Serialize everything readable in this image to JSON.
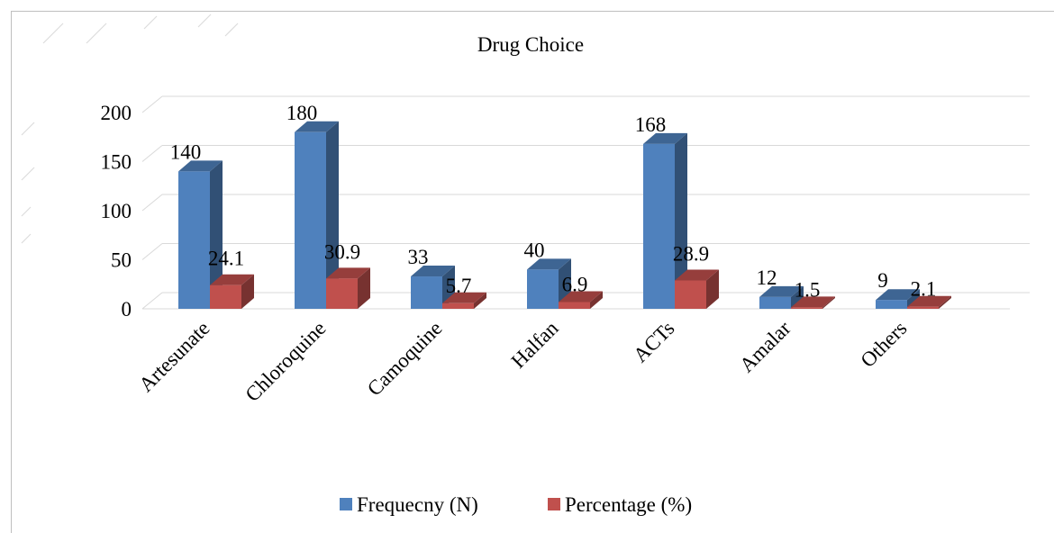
{
  "chart_data": {
    "type": "bar",
    "title": "Drug Choice",
    "categories": [
      "Artesunate",
      "Chloroquine",
      "Camoquine",
      "Halfan",
      "ACTs",
      "Amalar",
      "Others"
    ],
    "series": [
      {
        "name": "Frequecny (N)",
        "values": [
          140,
          180,
          33,
          40,
          168,
          12,
          9
        ],
        "labels": [
          "140",
          "180",
          "33",
          "40",
          "168",
          "12",
          "9"
        ],
        "color": "#4f81bd"
      },
      {
        "name": "Percentage (%)",
        "values": [
          24.1,
          30.9,
          5.7,
          6.9,
          28.9,
          1.5,
          2.1
        ],
        "labels": [
          "24.1",
          "30.9",
          "5.7",
          "6.9",
          "28.9",
          "1.5",
          "2.1"
        ],
        "color": "#c0504d"
      }
    ],
    "y_ticks": [
      "0",
      "50",
      "100",
      "150",
      "200"
    ],
    "ylim": [
      0,
      200
    ],
    "grid": true,
    "legend": "bottom",
    "style": "3d-clustered-column"
  }
}
